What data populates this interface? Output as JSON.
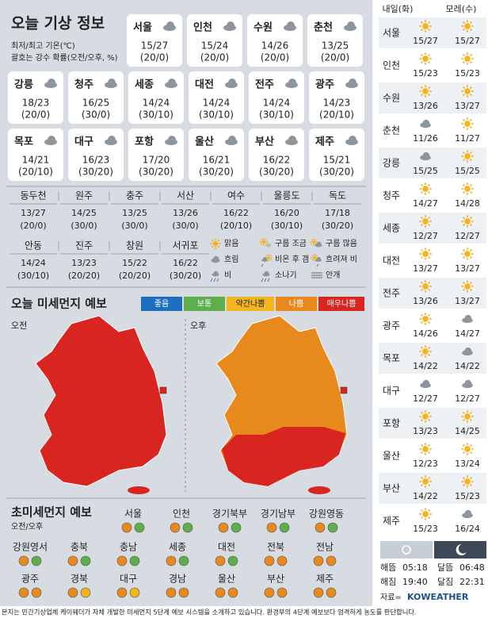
{
  "header": {
    "title": "오늘 기상 정보",
    "note1": "최저/최고 기온(℃)",
    "note2": "괄호는 강수 확률(오전/오후, %)"
  },
  "today_cards": [
    {
      "city": "서울",
      "temp": "15/27",
      "rain": "(20/0)",
      "icon": "cloud"
    },
    {
      "city": "인천",
      "temp": "15/24",
      "rain": "(20/0)",
      "icon": "cloud"
    },
    {
      "city": "수원",
      "temp": "14/26",
      "rain": "(20/0)",
      "icon": "cloud"
    },
    {
      "city": "춘천",
      "temp": "13/25",
      "rain": "(20/0)",
      "icon": "cloud"
    },
    {
      "city": "강릉",
      "temp": "18/23",
      "rain": "(20/0)",
      "icon": "cloud"
    },
    {
      "city": "청주",
      "temp": "16/25",
      "rain": "(30/0)",
      "icon": "cloud"
    },
    {
      "city": "세종",
      "temp": "14/24",
      "rain": "(30/10)",
      "icon": "cloud"
    },
    {
      "city": "대전",
      "temp": "14/24",
      "rain": "(30/10)",
      "icon": "cloud"
    },
    {
      "city": "전주",
      "temp": "14/24",
      "rain": "(30/10)",
      "icon": "cloud"
    },
    {
      "city": "광주",
      "temp": "14/23",
      "rain": "(20/10)",
      "icon": "cloud"
    },
    {
      "city": "목포",
      "temp": "14/21",
      "rain": "(20/10)",
      "icon": "cloud"
    },
    {
      "city": "대구",
      "temp": "16/23",
      "rain": "(30/20)",
      "icon": "cloud"
    },
    {
      "city": "포항",
      "temp": "17/20",
      "rain": "(30/20)",
      "icon": "cloud"
    },
    {
      "city": "울산",
      "temp": "16/21",
      "rain": "(30/20)",
      "icon": "cloud"
    },
    {
      "city": "부산",
      "temp": "16/22",
      "rain": "(30/20)",
      "icon": "cloud"
    },
    {
      "city": "제주",
      "temp": "15/21",
      "rain": "(30/20)",
      "icon": "cloud"
    }
  ],
  "small_table": [
    {
      "city": "동두천",
      "temp": "13/27",
      "rain": "(20/0)"
    },
    {
      "city": "원주",
      "temp": "14/25",
      "rain": "(30/0)"
    },
    {
      "city": "충주",
      "temp": "13/25",
      "rain": "(30/0)"
    },
    {
      "city": "서산",
      "temp": "13/26",
      "rain": "(30/0)"
    },
    {
      "city": "여수",
      "temp": "16/22",
      "rain": "(20/10)"
    },
    {
      "city": "울릉도",
      "temp": "16/20",
      "rain": "(30/10)"
    },
    {
      "city": "독도",
      "temp": "17/18",
      "rain": "(30/20)"
    },
    {
      "city": "안동",
      "temp": "14/24",
      "rain": "(30/10)"
    },
    {
      "city": "진주",
      "temp": "13/23",
      "rain": "(20/20)"
    },
    {
      "city": "창원",
      "temp": "15/22",
      "rain": "(20/20)"
    },
    {
      "city": "서귀포",
      "temp": "16/22",
      "rain": "(30/20)"
    }
  ],
  "weather_legend": [
    {
      "icon": "sun",
      "label": "맑음"
    },
    {
      "icon": "partly",
      "label": "구름 조금"
    },
    {
      "icon": "mostly",
      "label": "구름 많음"
    },
    {
      "icon": "cloud",
      "label": "흐림"
    },
    {
      "icon": "clearing",
      "label": "비온 후 갬"
    },
    {
      "icon": "rainlater",
      "label": "흐려져 비"
    },
    {
      "icon": "rain",
      "label": "비"
    },
    {
      "icon": "shower",
      "label": "소나기"
    },
    {
      "icon": "fog",
      "label": "안개"
    }
  ],
  "dust": {
    "title": "오늘 미세먼지 예보",
    "am": "오전",
    "pm": "오후",
    "scale": [
      {
        "label": "좋음",
        "color": "#1f6fc0"
      },
      {
        "label": "보통",
        "color": "#5fae4e"
      },
      {
        "label": "약간나쁨",
        "color": "#f2b51c"
      },
      {
        "label": "나쁨",
        "color": "#e8891d"
      },
      {
        "label": "매우나쁨",
        "color": "#d8251f"
      }
    ]
  },
  "fine_dust": {
    "title": "초미세먼지 예보",
    "sub": "오전/오후",
    "regions": [
      {
        "name": "서울",
        "am": "#e8891d",
        "pm": "#5fae4e"
      },
      {
        "name": "인천",
        "am": "#e8891d",
        "pm": "#5fae4e"
      },
      {
        "name": "경기북부",
        "am": "#e8891d",
        "pm": "#5fae4e"
      },
      {
        "name": "경기남부",
        "am": "#e8891d",
        "pm": "#5fae4e"
      },
      {
        "name": "강원영동",
        "am": "#e8891d",
        "pm": "#5fae4e"
      },
      {
        "name": "강원영서",
        "am": "#e8891d",
        "pm": "#5fae4e"
      },
      {
        "name": "충북",
        "am": "#e8891d",
        "pm": "#5fae4e"
      },
      {
        "name": "충남",
        "am": "#e8891d",
        "pm": "#5fae4e"
      },
      {
        "name": "세종",
        "am": "#e8891d",
        "pm": "#5fae4e"
      },
      {
        "name": "대전",
        "am": "#e8891d",
        "pm": "#5fae4e"
      },
      {
        "name": "전북",
        "am": "#e8891d",
        "pm": "#e8891d"
      },
      {
        "name": "전남",
        "am": "#e8891d",
        "pm": "#e8891d"
      },
      {
        "name": "광주",
        "am": "#e8891d",
        "pm": "#e8891d"
      },
      {
        "name": "경북",
        "am": "#e8891d",
        "pm": "#f2b51c"
      },
      {
        "name": "대구",
        "am": "#e8891d",
        "pm": "#f2b51c"
      },
      {
        "name": "경남",
        "am": "#e8891d",
        "pm": "#e8891d"
      },
      {
        "name": "울산",
        "am": "#e8891d",
        "pm": "#e8891d"
      },
      {
        "name": "부산",
        "am": "#e8891d",
        "pm": "#e8891d"
      },
      {
        "name": "제주",
        "am": "#e8891d",
        "pm": "#e8891d"
      }
    ]
  },
  "forecast": {
    "day1": "내일(화)",
    "day2": "모레(수)",
    "rows": [
      {
        "city": "서울",
        "d1": "15/27",
        "d1_icon": "sun",
        "d2": "15/27",
        "d2_icon": "sun"
      },
      {
        "city": "인천",
        "d1": "15/23",
        "d1_icon": "sun",
        "d2": "15/23",
        "d2_icon": "sun"
      },
      {
        "city": "수원",
        "d1": "13/26",
        "d1_icon": "sun",
        "d2": "13/27",
        "d2_icon": "sun"
      },
      {
        "city": "춘천",
        "d1": "11/26",
        "d1_icon": "cloud",
        "d2": "11/27",
        "d2_icon": "sun"
      },
      {
        "city": "강릉",
        "d1": "15/25",
        "d1_icon": "cloud",
        "d2": "15/25",
        "d2_icon": "sun"
      },
      {
        "city": "청주",
        "d1": "14/27",
        "d1_icon": "sun",
        "d2": "14/28",
        "d2_icon": "sun"
      },
      {
        "city": "세종",
        "d1": "12/27",
        "d1_icon": "sun",
        "d2": "12/27",
        "d2_icon": "sun"
      },
      {
        "city": "대전",
        "d1": "13/27",
        "d1_icon": "sun",
        "d2": "13/27",
        "d2_icon": "sun"
      },
      {
        "city": "전주",
        "d1": "13/26",
        "d1_icon": "sun",
        "d2": "13/27",
        "d2_icon": "sun"
      },
      {
        "city": "광주",
        "d1": "14/26",
        "d1_icon": "sun",
        "d2": "14/27",
        "d2_icon": "cloud"
      },
      {
        "city": "목포",
        "d1": "14/22",
        "d1_icon": "sun",
        "d2": "14/22",
        "d2_icon": "cloud"
      },
      {
        "city": "대구",
        "d1": "12/27",
        "d1_icon": "cloud",
        "d2": "12/27",
        "d2_icon": "cloud"
      },
      {
        "city": "포항",
        "d1": "13/23",
        "d1_icon": "sun",
        "d2": "14/25",
        "d2_icon": "sun"
      },
      {
        "city": "울산",
        "d1": "12/23",
        "d1_icon": "sun",
        "d2": "13/24",
        "d2_icon": "sun"
      },
      {
        "city": "부산",
        "d1": "14/22",
        "d1_icon": "sun",
        "d2": "15/23",
        "d2_icon": "sun"
      },
      {
        "city": "제주",
        "d1": "15/23",
        "d1_icon": "sun",
        "d2": "16/24",
        "d2_icon": "cloud"
      }
    ]
  },
  "astro": {
    "sunrise_label": "해뜸",
    "sunrise": "05:18",
    "sunset_label": "해짐",
    "sunset": "19:40",
    "moonrise_label": "달뜸",
    "moonrise": "06:48",
    "moonset_label": "달짐",
    "moonset": "22:31"
  },
  "source": {
    "label": "자료=",
    "brand": "KOWEATHER"
  },
  "footer": "본지는 민간기상업체 케이웨더가 자체 개발한 미세먼지 5단계 예보 시스템을 소개하고 있습니다. 환경부의 4단계 예보보다 엄격하게 농도를 판단합니다."
}
